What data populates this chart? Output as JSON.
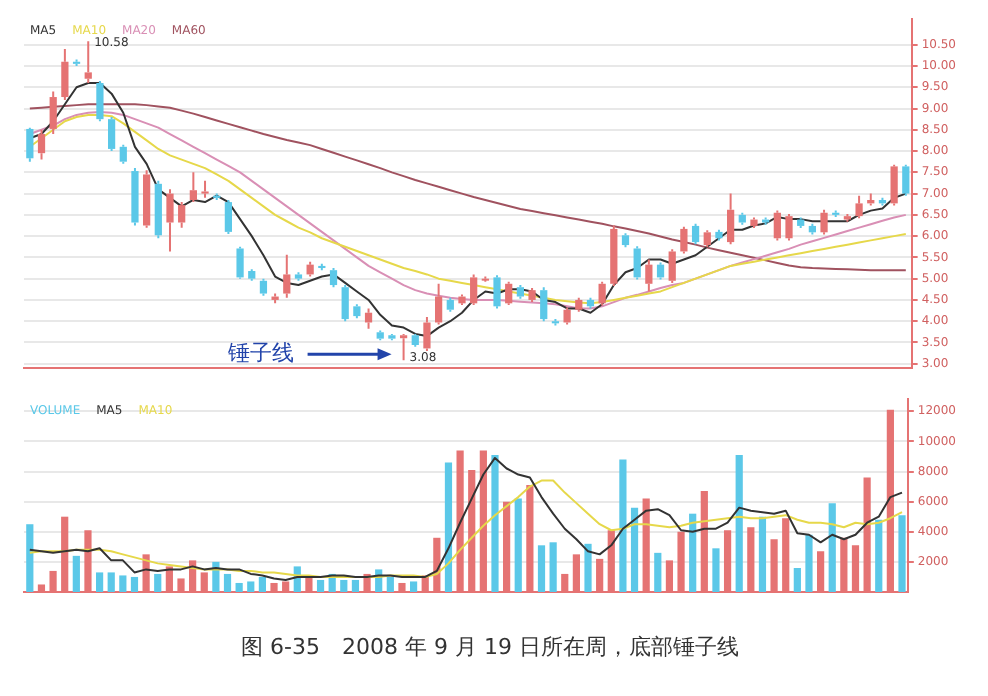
{
  "chart_data": [
    {
      "type": "candlestick",
      "legend": "top left",
      "grid": "y",
      "tick_labels": "y",
      "ylim": [
        2.9,
        11.1
      ],
      "yticks": [
        {
          "value": 3,
          "label": "3.00"
        },
        {
          "value": 3.5,
          "label": "3.50"
        },
        {
          "value": 4,
          "label": "4.00"
        },
        {
          "value": 4.5,
          "label": "4.50"
        },
        {
          "value": 5,
          "label": "5.00"
        },
        {
          "value": 5.5,
          "label": "5.50"
        },
        {
          "value": 6,
          "label": "6.00"
        },
        {
          "value": 6.5,
          "label": "6.50"
        },
        {
          "value": 7,
          "label": "7.00"
        },
        {
          "value": 7.5,
          "label": "7.50"
        },
        {
          "value": 8,
          "label": "8.00"
        },
        {
          "value": 8.5,
          "label": "8.50"
        },
        {
          "value": 9,
          "label": "9.00"
        },
        {
          "value": 9.5,
          "label": "9.50"
        },
        {
          "value": 10,
          "label": "10.00"
        },
        {
          "value": 10.5,
          "label": "10.50"
        }
      ],
      "categories": [
        null,
        null,
        null,
        null,
        null,
        null,
        null,
        null,
        null,
        null,
        null,
        null,
        null,
        null,
        null,
        null,
        null,
        null,
        null,
        null,
        null,
        null,
        null,
        null,
        null,
        null,
        null,
        null,
        null,
        null,
        null,
        null,
        null,
        null,
        null,
        null,
        null,
        null,
        null,
        null,
        null,
        null,
        null,
        null,
        null,
        null,
        null,
        null,
        null,
        null,
        null,
        null,
        null,
        null,
        null,
        null,
        null,
        null,
        null,
        null,
        null,
        null,
        null,
        null,
        null,
        null,
        null,
        null,
        null,
        null,
        null,
        null,
        null,
        null,
        null,
        null
      ],
      "ohlc": [
        [
          8.52,
          8.55,
          7.75,
          7.83
        ],
        [
          7.95,
          8.5,
          7.8,
          8.4
        ],
        [
          8.52,
          9.4,
          8.4,
          9.27
        ],
        [
          9.27,
          10.4,
          9.2,
          10.1
        ],
        [
          10.1,
          10.15,
          10.0,
          10.05
        ],
        [
          9.7,
          10.58,
          9.6,
          9.85
        ],
        [
          9.6,
          9.65,
          8.7,
          8.75
        ],
        [
          8.75,
          8.8,
          8.0,
          8.05
        ],
        [
          8.1,
          8.15,
          7.7,
          7.75
        ],
        [
          7.53,
          7.6,
          6.25,
          6.32
        ],
        [
          6.25,
          7.55,
          6.2,
          7.45
        ],
        [
          7.23,
          7.3,
          5.95,
          6.02
        ],
        [
          6.32,
          7.1,
          5.64,
          7.0
        ],
        [
          6.32,
          6.8,
          6.2,
          6.73
        ],
        [
          6.85,
          7.5,
          6.8,
          7.08
        ],
        [
          7.0,
          7.3,
          6.9,
          7.05
        ],
        [
          6.95,
          7.0,
          6.85,
          6.9
        ],
        [
          6.8,
          6.85,
          6.05,
          6.1
        ],
        [
          5.71,
          5.75,
          5.0,
          5.03
        ],
        [
          5.18,
          5.22,
          4.95,
          5.0
        ],
        [
          4.95,
          5.0,
          4.6,
          4.65
        ],
        [
          4.5,
          4.65,
          4.42,
          4.58
        ],
        [
          4.65,
          5.56,
          4.55,
          5.1
        ],
        [
          5.1,
          5.15,
          4.95,
          5.0
        ],
        [
          5.1,
          5.4,
          5.05,
          5.33
        ],
        [
          5.3,
          5.35,
          5.2,
          5.25
        ],
        [
          5.2,
          5.25,
          4.8,
          4.85
        ],
        [
          4.8,
          4.85,
          4.0,
          4.05
        ],
        [
          4.35,
          4.4,
          4.07,
          4.12
        ],
        [
          3.97,
          4.3,
          3.82,
          4.2
        ],
        [
          3.74,
          3.78,
          3.55,
          3.59
        ],
        [
          3.67,
          3.7,
          3.55,
          3.59
        ],
        [
          3.6,
          3.7,
          3.08,
          3.67
        ],
        [
          3.67,
          3.7,
          3.4,
          3.44
        ],
        [
          3.36,
          4.1,
          3.3,
          3.97
        ],
        [
          3.97,
          4.88,
          3.92,
          4.58
        ],
        [
          4.5,
          4.55,
          4.22,
          4.27
        ],
        [
          4.42,
          4.63,
          4.38,
          4.58
        ],
        [
          4.42,
          5.1,
          4.38,
          5.03
        ],
        [
          4.98,
          5.05,
          4.93,
          5.0
        ],
        [
          5.03,
          5.08,
          4.3,
          4.35
        ],
        [
          4.42,
          4.93,
          4.38,
          4.88
        ],
        [
          4.8,
          4.85,
          4.53,
          4.58
        ],
        [
          4.5,
          4.78,
          4.45,
          4.73
        ],
        [
          4.73,
          4.8,
          4.0,
          4.05
        ],
        [
          4.0,
          4.05,
          3.9,
          3.95
        ],
        [
          3.97,
          4.32,
          3.92,
          4.27
        ],
        [
          4.27,
          4.55,
          4.22,
          4.5
        ],
        [
          4.5,
          4.55,
          4.3,
          4.35
        ],
        [
          4.42,
          4.93,
          4.37,
          4.88
        ],
        [
          4.88,
          6.25,
          4.83,
          6.17
        ],
        [
          6.02,
          6.07,
          5.74,
          5.79
        ],
        [
          5.71,
          5.76,
          4.98,
          5.03
        ],
        [
          4.88,
          5.45,
          4.7,
          5.33
        ],
        [
          5.33,
          5.38,
          4.98,
          5.03
        ],
        [
          4.95,
          5.69,
          4.9,
          5.64
        ],
        [
          5.64,
          6.22,
          5.59,
          6.17
        ],
        [
          6.24,
          6.29,
          5.81,
          5.86
        ],
        [
          5.79,
          6.14,
          5.74,
          6.09
        ],
        [
          6.1,
          6.15,
          5.9,
          5.95
        ],
        [
          5.86,
          7.0,
          5.81,
          6.62
        ],
        [
          6.5,
          6.55,
          6.27,
          6.32
        ],
        [
          6.24,
          6.44,
          6.19,
          6.39
        ],
        [
          6.39,
          6.44,
          6.27,
          6.32
        ],
        [
          5.95,
          6.6,
          5.9,
          6.55
        ],
        [
          5.95,
          6.52,
          5.9,
          6.47
        ],
        [
          6.39,
          6.44,
          6.19,
          6.24
        ],
        [
          6.24,
          6.29,
          6.04,
          6.09
        ],
        [
          6.09,
          6.62,
          6.04,
          6.55
        ],
        [
          6.55,
          6.6,
          6.45,
          6.5
        ],
        [
          6.39,
          6.52,
          6.34,
          6.47
        ],
        [
          6.47,
          6.95,
          6.42,
          6.77
        ],
        [
          6.77,
          7.0,
          6.72,
          6.85
        ],
        [
          6.85,
          6.9,
          6.72,
          6.77
        ],
        [
          6.77,
          7.68,
          6.72,
          7.64
        ],
        [
          7.64,
          7.68,
          6.95,
          7.0
        ]
      ],
      "colors": [
        "#5bc8e8",
        "#e57373",
        "#e57373",
        "#e57373",
        "#5bc8e8",
        "#e57373",
        "#5bc8e8",
        "#5bc8e8",
        "#5bc8e8",
        "#5bc8e8",
        "#e57373",
        "#5bc8e8",
        "#e57373",
        "#e57373",
        "#e57373",
        "#e57373",
        "#5bc8e8",
        "#5bc8e8",
        "#5bc8e8",
        "#5bc8e8",
        "#5bc8e8",
        "#e57373",
        "#e57373",
        "#5bc8e8",
        "#e57373",
        "#5bc8e8",
        "#5bc8e8",
        "#5bc8e8",
        "#5bc8e8",
        "#e57373",
        "#5bc8e8",
        "#5bc8e8",
        "#e57373",
        "#5bc8e8",
        "#e57373",
        "#e57373",
        "#5bc8e8",
        "#e57373",
        "#e57373",
        "#e57373",
        "#5bc8e8",
        "#e57373",
        "#5bc8e8",
        "#e57373",
        "#5bc8e8",
        "#5bc8e8",
        "#e57373",
        "#e57373",
        "#5bc8e8",
        "#e57373",
        "#e57373",
        "#5bc8e8",
        "#5bc8e8",
        "#e57373",
        "#5bc8e8",
        "#e57373",
        "#e57373",
        "#5bc8e8",
        "#e57373",
        "#5bc8e8",
        "#e57373",
        "#5bc8e8",
        "#e57373",
        "#5bc8e8",
        "#e57373",
        "#e57373",
        "#5bc8e8",
        "#5bc8e8",
        "#e57373",
        "#5bc8e8",
        "#e57373",
        "#e57373",
        "#e57373",
        "#5bc8e8",
        "#e57373",
        "#5bc8e8"
      ],
      "series": [
        {
          "name": "MA5",
          "type": "line",
          "color": "#333333",
          "values": [
            8.3,
            8.4,
            8.7,
            9.1,
            9.5,
            9.6,
            9.6,
            9.35,
            8.9,
            8.1,
            7.7,
            7.1,
            6.9,
            6.7,
            6.85,
            6.8,
            6.95,
            6.8,
            6.4,
            6.0,
            5.55,
            5.05,
            4.9,
            4.85,
            4.95,
            5.05,
            5.1,
            4.9,
            4.7,
            4.5,
            4.15,
            3.9,
            3.85,
            3.7,
            3.65,
            3.85,
            4.0,
            4.2,
            4.5,
            4.7,
            4.65,
            4.75,
            4.75,
            4.7,
            4.5,
            4.45,
            4.3,
            4.3,
            4.2,
            4.4,
            4.85,
            5.15,
            5.25,
            5.45,
            5.45,
            5.35,
            5.45,
            5.55,
            5.75,
            5.95,
            6.15,
            6.15,
            6.25,
            6.3,
            6.45,
            6.4,
            6.4,
            6.35,
            6.35,
            6.35,
            6.35,
            6.5,
            6.6,
            6.65,
            6.9,
            7.0
          ]
        },
        {
          "name": "MA10",
          "type": "line",
          "color": "#e6d84a",
          "values": [
            8.1,
            8.3,
            8.5,
            8.7,
            8.8,
            8.85,
            8.85,
            8.82,
            8.65,
            8.45,
            8.25,
            8.05,
            7.9,
            7.8,
            7.7,
            7.6,
            7.45,
            7.3,
            7.1,
            6.9,
            6.7,
            6.5,
            6.35,
            6.2,
            6.09,
            5.95,
            5.85,
            5.75,
            5.65,
            5.55,
            5.45,
            5.35,
            5.25,
            5.18,
            5.1,
            5.0,
            4.95,
            4.9,
            4.85,
            4.8,
            4.75,
            4.7,
            4.65,
            4.6,
            4.55,
            4.5,
            4.47,
            4.44,
            4.42,
            4.45,
            4.5,
            4.55,
            4.6,
            4.65,
            4.7,
            4.8,
            4.9,
            5.0,
            5.1,
            5.2,
            5.3,
            5.35,
            5.4,
            5.45,
            5.5,
            5.55,
            5.6,
            5.65,
            5.7,
            5.75,
            5.8,
            5.85,
            5.9,
            5.95,
            6.0,
            6.05
          ]
        },
        {
          "name": "MA20",
          "type": "line",
          "color": "#d98fb5",
          "values": [
            8.4,
            8.5,
            8.6,
            8.75,
            8.85,
            8.9,
            8.92,
            8.9,
            8.85,
            8.75,
            8.65,
            8.55,
            8.4,
            8.25,
            8.1,
            7.95,
            7.8,
            7.65,
            7.5,
            7.3,
            7.1,
            6.9,
            6.7,
            6.5,
            6.3,
            6.1,
            5.9,
            5.7,
            5.5,
            5.3,
            5.15,
            5.0,
            4.85,
            4.73,
            4.65,
            4.6,
            4.55,
            4.52,
            4.5,
            4.5,
            4.5,
            4.48,
            4.46,
            4.44,
            4.42,
            4.4,
            4.35,
            4.3,
            4.3,
            4.35,
            4.45,
            4.55,
            4.62,
            4.7,
            4.78,
            4.85,
            4.9,
            5.0,
            5.1,
            5.2,
            5.3,
            5.38,
            5.46,
            5.54,
            5.62,
            5.7,
            5.8,
            5.88,
            5.96,
            6.04,
            6.12,
            6.2,
            6.28,
            6.36,
            6.44,
            6.5
          ]
        },
        {
          "name": "MA60",
          "type": "line",
          "color": "#a0525f",
          "values": [
            9.0,
            9.02,
            9.04,
            9.06,
            9.08,
            9.1,
            9.1,
            9.1,
            9.1,
            9.1,
            9.08,
            9.05,
            9.02,
            8.95,
            8.88,
            8.8,
            8.72,
            8.64,
            8.56,
            8.48,
            8.4,
            8.33,
            8.26,
            8.2,
            8.14,
            8.05,
            7.96,
            7.87,
            7.78,
            7.69,
            7.6,
            7.5,
            7.41,
            7.32,
            7.24,
            7.16,
            7.08,
            7.0,
            6.92,
            6.85,
            6.78,
            6.71,
            6.64,
            6.59,
            6.54,
            6.49,
            6.44,
            6.39,
            6.34,
            6.29,
            6.23,
            6.18,
            6.12,
            6.06,
            5.99,
            5.92,
            5.86,
            5.8,
            5.73,
            5.67,
            5.61,
            5.55,
            5.49,
            5.43,
            5.37,
            5.31,
            5.27,
            5.25,
            5.24,
            5.23,
            5.22,
            5.21,
            5.2,
            5.2,
            5.2,
            5.2
          ]
        }
      ],
      "annotations": [
        "10.58",
        "3.08",
        "锤子线"
      ]
    },
    {
      "type": "bar",
      "legend": "top left",
      "grid": "y",
      "tick_labels": "y",
      "ylim": [
        0,
        12800
      ],
      "yticks": [
        2000,
        4000,
        6000,
        8000,
        10000,
        12000
      ],
      "categories": [
        null,
        null,
        null,
        null,
        null,
        null,
        null,
        null,
        null,
        null,
        null,
        null,
        null,
        null,
        null,
        null,
        null,
        null,
        null,
        null,
        null,
        null,
        null,
        null,
        null,
        null,
        null,
        null,
        null,
        null,
        null,
        null,
        null,
        null,
        null,
        null,
        null,
        null,
        null,
        null,
        null,
        null,
        null,
        null,
        null,
        null,
        null,
        null,
        null,
        null,
        null,
        null,
        null,
        null,
        null,
        null,
        null,
        null,
        null,
        null,
        null,
        null,
        null,
        null,
        null,
        null,
        null,
        null,
        null,
        null,
        null,
        null,
        null,
        null,
        null,
        null
      ],
      "series": [
        {
          "name": "VOLUME",
          "type": "bar",
          "colors": [
            "#5bc8e8",
            "#e57373",
            "#e57373",
            "#e57373",
            "#5bc8e8",
            "#e57373",
            "#5bc8e8",
            "#5bc8e8",
            "#5bc8e8",
            "#5bc8e8",
            "#e57373",
            "#5bc8e8",
            "#e57373",
            "#e57373",
            "#e57373",
            "#e57373",
            "#5bc8e8",
            "#5bc8e8",
            "#5bc8e8",
            "#5bc8e8",
            "#5bc8e8",
            "#e57373",
            "#e57373",
            "#5bc8e8",
            "#e57373",
            "#5bc8e8",
            "#5bc8e8",
            "#5bc8e8",
            "#5bc8e8",
            "#e57373",
            "#5bc8e8",
            "#5bc8e8",
            "#e57373",
            "#5bc8e8",
            "#e57373",
            "#e57373",
            "#5bc8e8",
            "#e57373",
            "#e57373",
            "#e57373",
            "#5bc8e8",
            "#e57373",
            "#5bc8e8",
            "#e57373",
            "#5bc8e8",
            "#5bc8e8",
            "#e57373",
            "#e57373",
            "#5bc8e8",
            "#e57373",
            "#e57373",
            "#5bc8e8",
            "#5bc8e8",
            "#e57373",
            "#5bc8e8",
            "#e57373",
            "#e57373",
            "#5bc8e8",
            "#e57373",
            "#5bc8e8",
            "#e57373",
            "#5bc8e8",
            "#e57373",
            "#5bc8e8",
            "#e57373",
            "#e57373",
            "#5bc8e8",
            "#5bc8e8",
            "#e57373",
            "#5bc8e8",
            "#e57373",
            "#e57373",
            "#e57373",
            "#5bc8e8",
            "#e57373",
            "#5bc8e8"
          ],
          "values": [
            4500,
            500,
            1400,
            5000,
            2400,
            4100,
            1300,
            1300,
            1100,
            1000,
            2500,
            1200,
            1700,
            900,
            2100,
            1300,
            2000,
            1200,
            600,
            700,
            1000,
            600,
            700,
            1700,
            1000,
            800,
            1200,
            800,
            800,
            1200,
            1500,
            1000,
            600,
            700,
            1100,
            3600,
            8600,
            9400,
            8100,
            9400,
            9100,
            6000,
            6200,
            7100,
            3100,
            3300,
            1200,
            2500,
            3200,
            2200,
            4100,
            8800,
            5600,
            6200,
            2600,
            2100,
            4000,
            5200,
            6700,
            2900,
            4100,
            9100,
            4300,
            5000,
            3500,
            4900,
            1600,
            3800,
            2700,
            5900,
            3600,
            3100,
            7600,
            4800,
            12100,
            5100
          ]
        },
        {
          "name": "MA5",
          "type": "line",
          "color": "#333333",
          "values": [
            2800,
            2700,
            2600,
            2700,
            2800,
            2700,
            2900,
            2100,
            2100,
            1300,
            1500,
            1400,
            1500,
            1500,
            1700,
            1500,
            1600,
            1500,
            1500,
            1200,
            1100,
            900,
            800,
            1000,
            1000,
            1000,
            1100,
            1100,
            1000,
            1000,
            1100,
            1100,
            1000,
            1000,
            1000,
            1400,
            2900,
            4600,
            6200,
            7800,
            8900,
            8200,
            7800,
            7600,
            6300,
            5200,
            4200,
            3500,
            2700,
            2500,
            3100,
            4200,
            4800,
            5400,
            5500,
            5100,
            4100,
            4000,
            4200,
            4200,
            4600,
            5600,
            5400,
            5300,
            5200,
            5400,
            3900,
            3800,
            3300,
            3800,
            3500,
            3800,
            4600,
            5000,
            6300,
            6600
          ]
        },
        {
          "name": "MA10",
          "type": "line",
          "color": "#e6d84a",
          "values": [
            2600,
            2700,
            2700,
            2700,
            2800,
            2800,
            2800,
            2700,
            2500,
            2300,
            2100,
            1900,
            1800,
            1700,
            1600,
            1500,
            1500,
            1500,
            1400,
            1400,
            1300,
            1300,
            1200,
            1100,
            1100,
            1000,
            1000,
            1000,
            1000,
            1000,
            1000,
            1100,
            1100,
            1100,
            1000,
            1200,
            1900,
            2800,
            3600,
            4400,
            5100,
            5700,
            6300,
            7000,
            7400,
            7400,
            6600,
            5900,
            5200,
            4500,
            4100,
            4200,
            4500,
            4500,
            4400,
            4300,
            4400,
            4600,
            4700,
            4800,
            4900,
            5000,
            4900,
            4900,
            5000,
            5100,
            4800,
            4600,
            4600,
            4500,
            4300,
            4600,
            4500,
            4600,
            4900,
            5300
          ]
        }
      ],
      "annotations": [
        "图 6-35　2008 年 9 月 19 日所在周，底部锤子线"
      ]
    }
  ]
}
